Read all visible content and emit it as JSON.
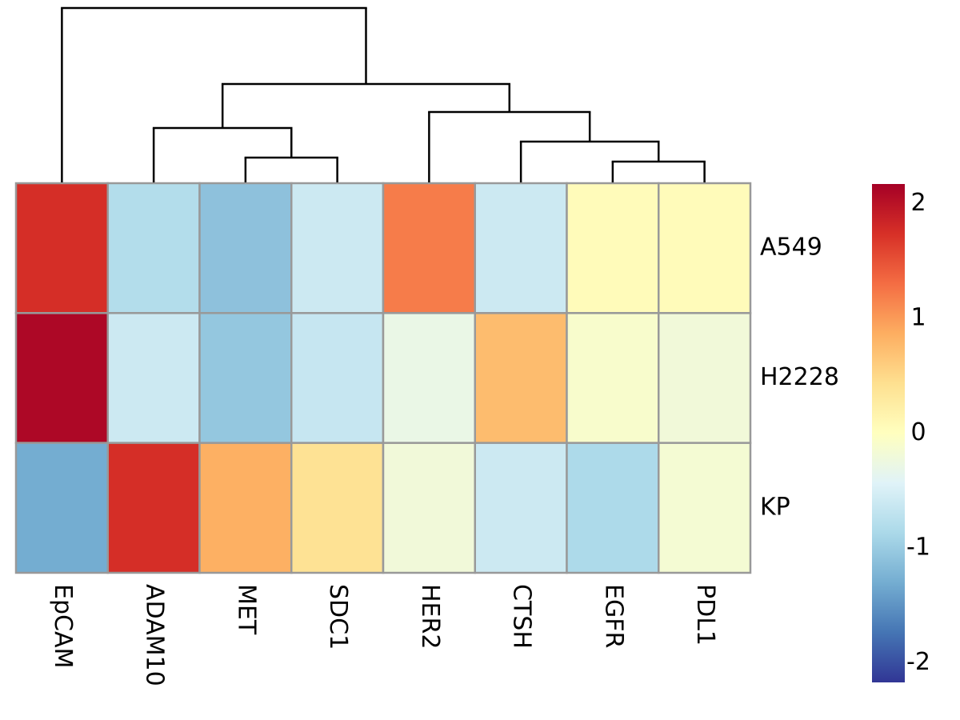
{
  "chart_data": {
    "type": "heatmap",
    "categories": [
      "EpCAM",
      "ADAM10",
      "MET",
      "SDC1",
      "HER2",
      "CTSH",
      "EGFR",
      "PDL1"
    ],
    "rows": [
      "A549",
      "H2228",
      "KP"
    ],
    "values": [
      [
        1.75,
        -0.8,
        -1.1,
        -0.6,
        1.2,
        -0.6,
        0.05,
        0.05
      ],
      [
        2.1,
        -0.6,
        -1.05,
        -0.65,
        -0.3,
        0.75,
        -0.1,
        -0.2
      ],
      [
        -1.3,
        1.75,
        0.85,
        0.4,
        -0.2,
        -0.6,
        -0.85,
        -0.15
      ]
    ],
    "colorscale": [
      "#313695",
      "#4575b4",
      "#74add1",
      "#abd9e9",
      "#e0f3f8",
      "#ffffbf",
      "#fee090",
      "#fdae61",
      "#f46d43",
      "#d73027",
      "#a50026"
    ],
    "zlim": [
      -2.17,
      2.17
    ],
    "zticks": [
      -2,
      -1,
      0,
      1,
      2
    ],
    "dendrogram": {
      "merge": [
        [
          -7,
          -8
        ],
        [
          -3,
          -4
        ],
        [
          -6,
          1
        ],
        [
          -2,
          2
        ],
        [
          -5,
          3
        ],
        [
          4,
          5
        ],
        [
          -1,
          6
        ]
      ],
      "height": [
        26,
        31,
        51,
        68,
        88,
        123,
        218
      ]
    }
  }
}
